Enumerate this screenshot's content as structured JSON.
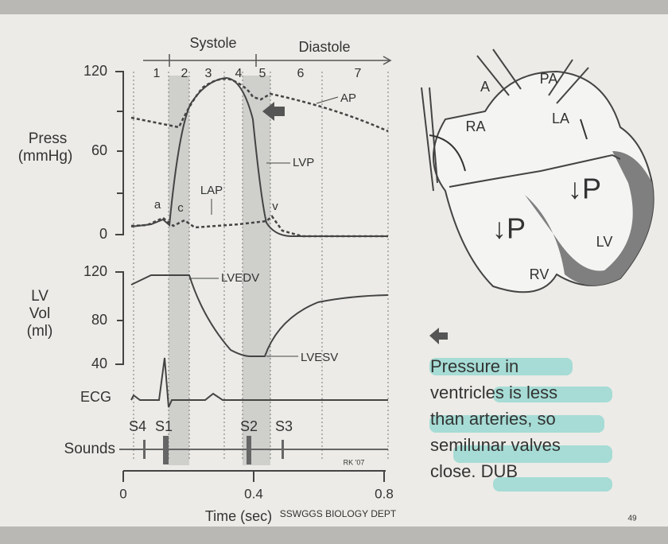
{
  "phases": {
    "systole": "Systole",
    "diastole": "Diastole",
    "numbers": [
      "1",
      "2",
      "3",
      "4",
      "5",
      "6",
      "7"
    ]
  },
  "pressure_panel": {
    "label_lines": [
      "Press",
      "(mmHg)"
    ],
    "ticks": [
      "120",
      "60",
      "0"
    ],
    "annotations": {
      "ap": "AP",
      "lvp": "LVP",
      "lap": "LAP",
      "a": "a",
      "c": "c",
      "v": "v"
    }
  },
  "volume_panel": {
    "label_lines": [
      "LV",
      "Vol",
      "(ml)"
    ],
    "ticks": [
      "120",
      "80",
      "40"
    ],
    "annotations": {
      "lvedv": "LVEDV",
      "lvesv": "LVESV"
    }
  },
  "ecg": {
    "label": "ECG"
  },
  "sounds": {
    "label": "Sounds",
    "items": [
      "S4",
      "S1",
      "S2",
      "S3"
    ],
    "credit": "RK '07"
  },
  "time_axis": {
    "ticks": [
      "0",
      "0.4",
      "0.8"
    ],
    "label": "Time (sec)"
  },
  "footer": {
    "dept": "SSWGGS BIOLOGY DEPT",
    "page": "49"
  },
  "heart": {
    "labels": [
      "A",
      "PA",
      "RA",
      "LA",
      "↓P",
      "↓P",
      "RV",
      "LV"
    ]
  },
  "caption": {
    "lines": [
      "Pressure in",
      "ventricles is less",
      "than arteries, so",
      "semilunar valves",
      "close. DUB"
    ]
  }
}
